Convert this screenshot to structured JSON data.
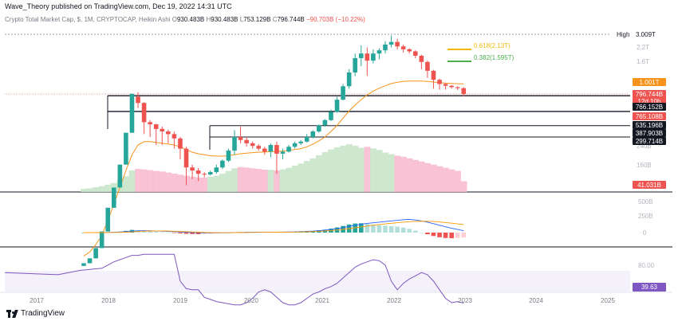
{
  "header": {
    "publisher": "Wave_Theory published on TradingView.com, Dec 19, 2022 14:31 UTC",
    "symbol": "Crypto Total Market Cap, $, 1M, CRYPTOCAP, Heikin Ashi",
    "o_label": "O",
    "o_value": "930.483B",
    "h_label": "H",
    "h_value": "930.483B",
    "l_label": "L",
    "l_value": "753.129B",
    "c_label": "C",
    "c_value": "796.744B",
    "change": "−90.703B (−10.22%)"
  },
  "brand": {
    "name": "TradingView"
  },
  "colors": {
    "up": "#26a69a",
    "down": "#ef5350",
    "ema": "#f7931a",
    "macd": "#2962ff",
    "signal": "#ff9800",
    "rsi": "#7e57c2",
    "fib_618": "#f0b90b",
    "fib_382": "#4caf50"
  },
  "chart_data": [
    {
      "type": "candlestick",
      "title": "Crypto Total Market Cap, $, 1M, CRYPTOCAP, Heikin Ashi",
      "y_scale": "log",
      "x_ticks": [
        "2017",
        "2018",
        "2019",
        "2020",
        "2021",
        "2022",
        "2023",
        "2024",
        "2025"
      ],
      "y_ticks": [
        "2.2T",
        "1.6T",
        "240B",
        "160B"
      ],
      "high_label": "High",
      "high_value": "3.009T",
      "price_tags": [
        {
          "value": "1.001T",
          "color": "#f7931a"
        },
        {
          "value": "796.744B",
          "color": "#ef5350",
          "sub": "12d 10h"
        },
        {
          "value": "766.152B",
          "color": "#131722"
        },
        {
          "value": "765.108B",
          "color": "#ef5350"
        },
        {
          "value": "535.196B",
          "color": "#131722"
        },
        {
          "value": "387.903B",
          "color": "#131722"
        },
        {
          "value": "299.714B",
          "color": "#131722"
        }
      ],
      "fib_levels": [
        {
          "label": "0.618(2.13T)",
          "value": 2130
        },
        {
          "label": "0.382(1.595T)",
          "value": 1595
        }
      ],
      "support_levels": [
        766.152,
        535.196,
        387.903,
        299.714
      ],
      "volume_tag": "41.031B",
      "candles_B": [
        [
          16,
          17,
          16,
          17
        ],
        [
          17,
          19,
          17,
          19
        ],
        [
          19,
          24,
          19,
          24
        ],
        [
          24,
          35,
          24,
          35
        ],
        [
          35,
          60,
          35,
          60
        ],
        [
          60,
          95,
          60,
          95
        ],
        [
          95,
          160,
          95,
          160
        ],
        [
          160,
          330,
          160,
          330
        ],
        [
          330,
          800,
          330,
          800
        ],
        [
          750,
          830,
          580,
          650
        ],
        [
          650,
          660,
          320,
          420
        ],
        [
          420,
          440,
          300,
          400
        ],
        [
          400,
          405,
          250,
          360
        ],
        [
          360,
          380,
          250,
          340
        ],
        [
          340,
          355,
          260,
          320
        ],
        [
          320,
          340,
          230,
          290
        ],
        [
          290,
          300,
          180,
          230
        ],
        [
          230,
          240,
          100,
          150
        ],
        [
          150,
          160,
          115,
          140
        ],
        [
          140,
          148,
          110,
          130
        ],
        [
          130,
          135,
          120,
          128
        ],
        [
          128,
          140,
          125,
          135
        ],
        [
          135,
          160,
          130,
          150
        ],
        [
          150,
          180,
          145,
          175
        ],
        [
          175,
          230,
          170,
          220
        ],
        [
          220,
          350,
          200,
          300
        ],
        [
          300,
          380,
          260,
          280
        ],
        [
          280,
          300,
          240,
          260
        ],
        [
          260,
          270,
          230,
          245
        ],
        [
          245,
          255,
          220,
          230
        ],
        [
          230,
          240,
          200,
          215
        ],
        [
          215,
          260,
          190,
          250
        ],
        [
          250,
          270,
          130,
          205
        ],
        [
          205,
          230,
          180,
          215
        ],
        [
          215,
          250,
          210,
          240
        ],
        [
          240,
          270,
          230,
          260
        ],
        [
          260,
          280,
          250,
          270
        ],
        [
          270,
          320,
          265,
          300
        ],
        [
          300,
          350,
          290,
          340
        ],
        [
          340,
          400,
          330,
          390
        ],
        [
          390,
          450,
          380,
          440
        ],
        [
          440,
          560,
          430,
          530
        ],
        [
          530,
          750,
          520,
          700
        ],
        [
          700,
          1000,
          690,
          950
        ],
        [
          950,
          1400,
          900,
          1300
        ],
        [
          1300,
          2000,
          1200,
          1800
        ],
        [
          1800,
          2400,
          1500,
          2000
        ],
        [
          2000,
          2300,
          1200,
          1700
        ],
        [
          1700,
          2200,
          1600,
          2000
        ],
        [
          2000,
          2250,
          1750,
          2150
        ],
        [
          2150,
          2650,
          2000,
          2450
        ],
        [
          2450,
          3009,
          2300,
          2600
        ],
        [
          2600,
          2800,
          2200,
          2350
        ],
        [
          2350,
          2450,
          2050,
          2200
        ],
        [
          2200,
          2260,
          2000,
          2100
        ],
        [
          2100,
          2150,
          1800,
          1900
        ],
        [
          1900,
          1950,
          1400,
          1650
        ],
        [
          1650,
          1700,
          1150,
          1350
        ],
        [
          1350,
          1380,
          900,
          1100
        ],
        [
          1100,
          1130,
          880,
          1000
        ],
        [
          1000,
          1020,
          880,
          960
        ],
        [
          960,
          980,
          900,
          930
        ],
        [
          930,
          950,
          870,
          910
        ],
        [
          910,
          930,
          753,
          797
        ]
      ],
      "ema_B": [
        20,
        22,
        26,
        32,
        45,
        65,
        95,
        140,
        200,
        250,
        270,
        270,
        265,
        260,
        255,
        250,
        240,
        225,
        212,
        205,
        200,
        196,
        194,
        194,
        196,
        200,
        205,
        208,
        210,
        212,
        213,
        215,
        216,
        218,
        221,
        225,
        230,
        240,
        255,
        275,
        300,
        340,
        390,
        460,
        540,
        620,
        700,
        780,
        850,
        910,
        960,
        1010,
        1040,
        1060,
        1070,
        1070,
        1068,
        1060,
        1045,
        1030,
        1020,
        1012,
        1006,
        1001
      ],
      "volume_B": [
        12,
        14,
        18,
        22,
        28,
        34,
        44,
        60,
        82,
        88,
        86,
        83,
        80,
        78,
        74,
        70,
        66,
        62,
        58,
        55,
        55,
        58,
        62,
        70,
        80,
        90,
        95,
        93,
        90,
        88,
        85,
        84,
        82,
        86,
        92,
        100,
        108,
        118,
        128,
        140,
        152,
        162,
        170,
        176,
        182,
        176,
        168,
        172,
        166,
        160,
        150,
        144,
        138,
        134,
        128,
        122,
        116,
        110,
        104,
        98,
        92,
        86,
        80,
        41
      ]
    },
    {
      "type": "bar+line",
      "title": "MACD",
      "y_ticks": [
        "500B",
        "250B",
        "0"
      ],
      "hist": [
        0,
        0,
        0,
        1,
        2,
        4,
        8,
        14,
        22,
        20,
        16,
        12,
        8,
        4,
        1,
        -3,
        -7,
        -10,
        -12,
        -13,
        -12,
        -10,
        -7,
        -4,
        -1,
        2,
        4,
        5,
        5,
        4,
        3,
        3,
        2,
        3,
        4,
        6,
        8,
        11,
        14,
        18,
        24,
        32,
        42,
        54,
        66,
        74,
        76,
        72,
        66,
        60,
        56,
        52,
        48,
        40,
        30,
        16,
        0,
        -14,
        -28,
        -38,
        -44,
        -46,
        -44,
        -40
      ],
      "macd": [
        0,
        0,
        1,
        2,
        5,
        10,
        18,
        30,
        46,
        58,
        62,
        60,
        55,
        48,
        40,
        30,
        20,
        10,
        2,
        -4,
        -8,
        -10,
        -9,
        -7,
        -4,
        0,
        4,
        8,
        10,
        12,
        13,
        14,
        15,
        17,
        20,
        24,
        30,
        38,
        48,
        62,
        80,
        100,
        128,
        160,
        200,
        240,
        275,
        300,
        320,
        340,
        360,
        380,
        400,
        420,
        430,
        410,
        380,
        340,
        290,
        240,
        190,
        140,
        100,
        60
      ],
      "signal": [
        0,
        0,
        0,
        1,
        2,
        4,
        8,
        14,
        24,
        36,
        46,
        52,
        55,
        54,
        50,
        45,
        38,
        30,
        22,
        14,
        6,
        0,
        -3,
        -4,
        -4,
        -3,
        -1,
        2,
        5,
        8,
        10,
        11,
        12,
        13,
        15,
        17,
        21,
        26,
        33,
        42,
        54,
        68,
        86,
        106,
        130,
        156,
        184,
        212,
        238,
        262,
        284,
        304,
        322,
        340,
        356,
        366,
        370,
        368,
        360,
        346,
        328,
        306,
        282,
        256
      ]
    },
    {
      "type": "line",
      "title": "RSI",
      "y_ticks": [
        "80.00"
      ],
      "last_value": "39.63",
      "values": [
        68,
        66,
        70,
        72,
        75,
        78,
        80,
        82,
        84,
        84,
        85,
        85,
        85,
        85,
        85,
        85,
        60,
        53,
        52,
        52,
        45,
        43,
        41,
        40,
        39,
        38,
        38,
        40,
        44,
        50,
        52,
        50,
        45,
        40,
        38,
        38,
        40,
        44,
        48,
        50,
        53,
        55,
        58,
        63,
        68,
        73,
        76,
        78,
        80,
        79,
        75,
        60,
        52,
        58,
        62,
        65,
        68,
        66,
        60,
        52,
        44,
        40,
        41,
        39.63
      ]
    }
  ]
}
